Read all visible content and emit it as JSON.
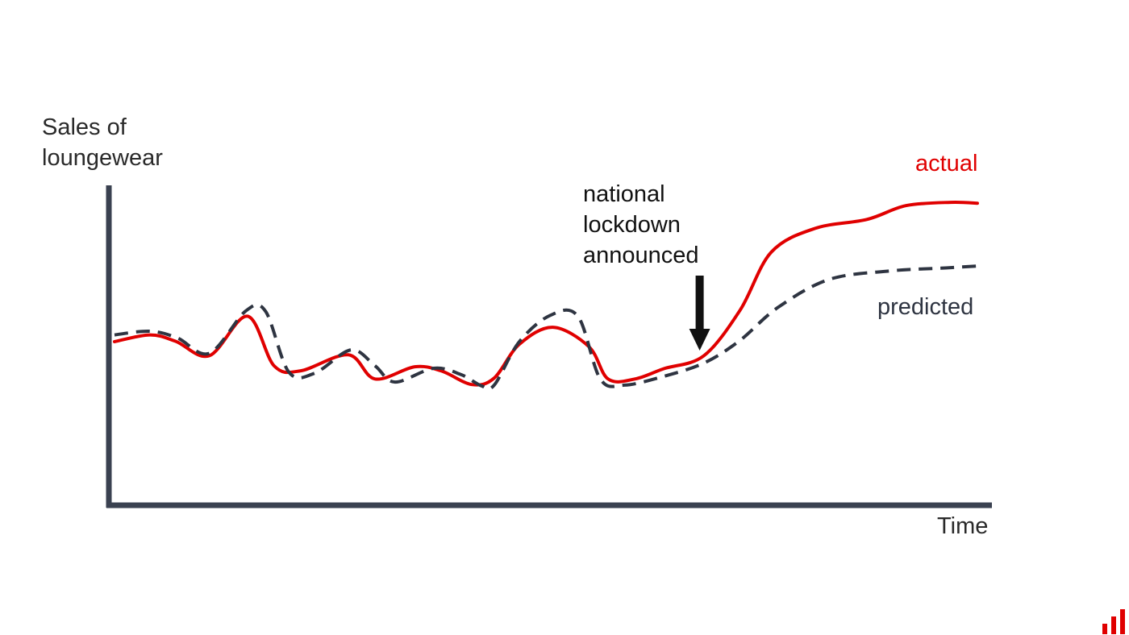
{
  "chart_data": {
    "type": "line",
    "title": "",
    "ylabel": "Sales of\nloungewear",
    "xlabel": "Time",
    "grid": false,
    "legend": "inline labels at right end of each line",
    "annotation": {
      "text": "national\nlockdown\nannounced",
      "x": 0.68
    },
    "xlim": [
      0,
      1
    ],
    "ylim": [
      0,
      1
    ],
    "series": [
      {
        "name": "actual",
        "color": "#e00000",
        "style": "solid",
        "points": [
          [
            0.0,
            0.458
          ],
          [
            0.041,
            0.48
          ],
          [
            0.071,
            0.459
          ],
          [
            0.11,
            0.412
          ],
          [
            0.154,
            0.541
          ],
          [
            0.185,
            0.379
          ],
          [
            0.216,
            0.363
          ],
          [
            0.271,
            0.415
          ],
          [
            0.302,
            0.336
          ],
          [
            0.348,
            0.376
          ],
          [
            0.379,
            0.362
          ],
          [
            0.414,
            0.318
          ],
          [
            0.44,
            0.339
          ],
          [
            0.469,
            0.449
          ],
          [
            0.508,
            0.505
          ],
          [
            0.55,
            0.441
          ],
          [
            0.572,
            0.336
          ],
          [
            0.603,
            0.336
          ],
          [
            0.637,
            0.37
          ],
          [
            0.683,
            0.412
          ],
          [
            0.725,
            0.561
          ],
          [
            0.761,
            0.75
          ],
          [
            0.812,
            0.828
          ],
          [
            0.872,
            0.857
          ],
          [
            0.917,
            0.902
          ],
          [
            0.969,
            0.913
          ],
          [
            1.0,
            0.91
          ]
        ]
      },
      {
        "name": "predicted",
        "color": "#2e3441",
        "style": "dashed",
        "points": [
          [
            0.0,
            0.48
          ],
          [
            0.041,
            0.492
          ],
          [
            0.073,
            0.47
          ],
          [
            0.11,
            0.42
          ],
          [
            0.152,
            0.558
          ],
          [
            0.175,
            0.557
          ],
          [
            0.202,
            0.359
          ],
          [
            0.232,
            0.355
          ],
          [
            0.274,
            0.431
          ],
          [
            0.302,
            0.379
          ],
          [
            0.325,
            0.326
          ],
          [
            0.37,
            0.371
          ],
          [
            0.402,
            0.35
          ],
          [
            0.425,
            0.314
          ],
          [
            0.44,
            0.316
          ],
          [
            0.469,
            0.457
          ],
          [
            0.505,
            0.544
          ],
          [
            0.537,
            0.541
          ],
          [
            0.563,
            0.336
          ],
          [
            0.591,
            0.316
          ],
          [
            0.637,
            0.345
          ],
          [
            0.683,
            0.388
          ],
          [
            0.724,
            0.46
          ],
          [
            0.769,
            0.57
          ],
          [
            0.828,
            0.661
          ],
          [
            0.899,
            0.689
          ],
          [
            0.958,
            0.698
          ],
          [
            1.0,
            0.705
          ]
        ]
      }
    ]
  },
  "labels": {
    "ylabel": "Sales of\nloungewear",
    "xlabel": "Time",
    "annotation": "national\nlockdown\nannounced",
    "actual": "actual",
    "predicted": "predicted"
  },
  "colors": {
    "actual": "#e00000",
    "predicted": "#2e3441",
    "axis": "#3a4150",
    "annotation_arrow": "#111111",
    "logo": "#e00000"
  },
  "icons": {
    "logo": "bar-chart-logo-icon",
    "annotation_arrow": "down-arrow-icon"
  }
}
